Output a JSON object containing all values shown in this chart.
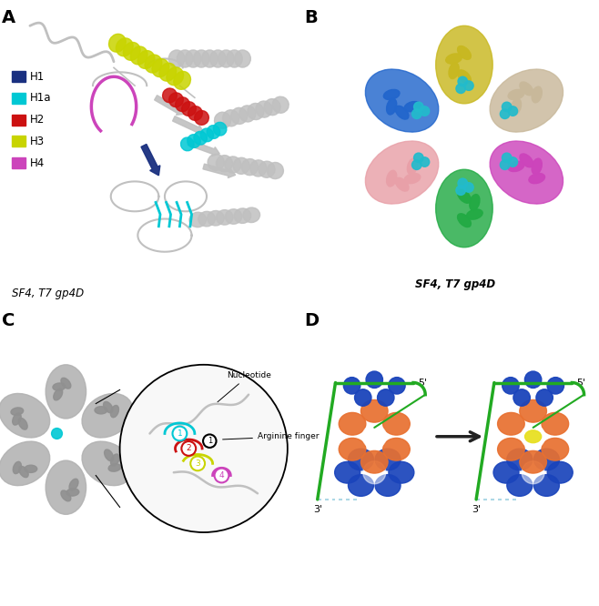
{
  "figure_width": 6.58,
  "figure_height": 6.66,
  "dpi": 100,
  "background_color": "#ffffff",
  "panel_labels": [
    "A",
    "B",
    "C",
    "D"
  ],
  "panel_label_fontsize": 14,
  "panel_label_weight": "bold",
  "subtitle_A": "SF4, T7 gp4D",
  "subtitle_B": "SF4, T7 gp4D",
  "legend_A": {
    "H1": "#1a3080",
    "H1a": "#00c8d4",
    "H2": "#cc1111",
    "H3": "#c8d400",
    "H4": "#cc44bb"
  },
  "colors_B": {
    "yellow": "#c8b820",
    "tan": "#c8b89a",
    "magenta": "#cc44bb",
    "blue": "#2266cc",
    "pink": "#e8a0a8",
    "green": "#22aa44",
    "cyan_ball": "#22bbcc"
  },
  "helicase_orange": "#e87030",
  "helicase_blue": "#1a44bb",
  "helicase_yellow": "#e8e022",
  "dna_color": "#22aa22",
  "arrow_color": "#222222",
  "label_5prime": "5'",
  "label_3prime": "3'",
  "annot_nucleotide": "Nucleotide",
  "annot_arginine": "Arginine finger"
}
